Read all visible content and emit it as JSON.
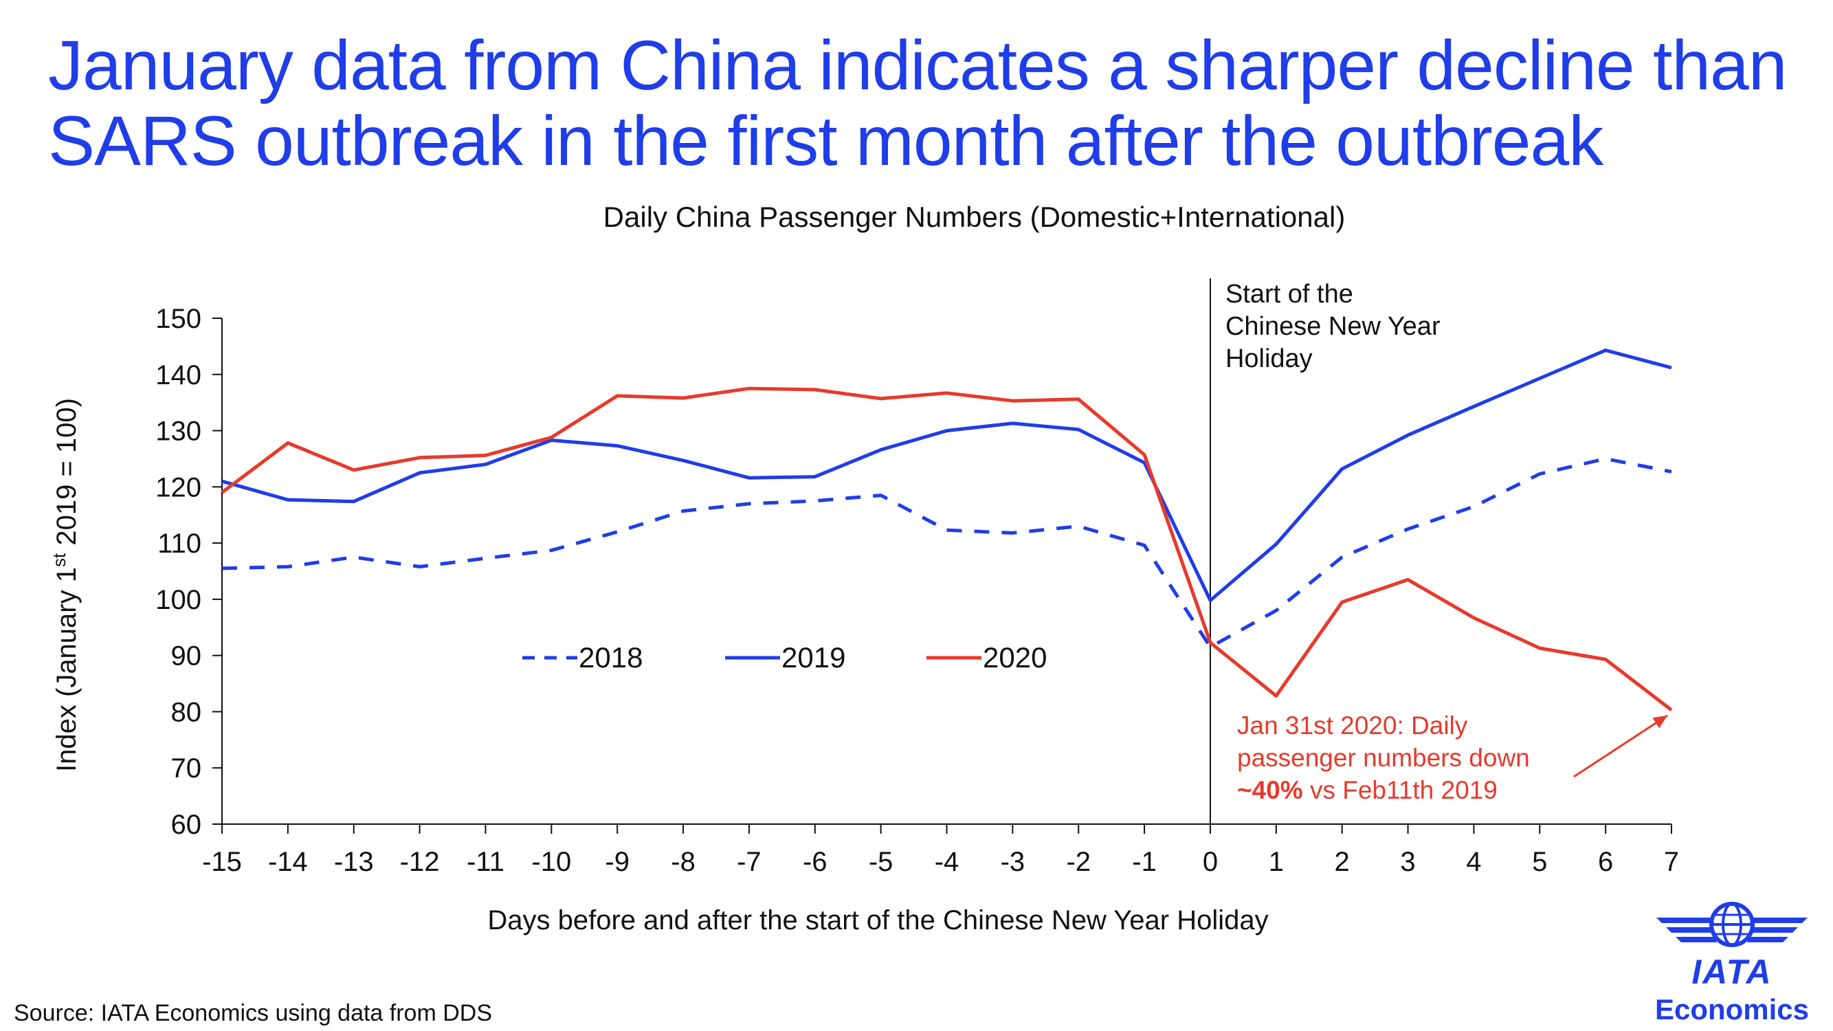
{
  "headline": {
    "line1": "January data from China indicates a sharper decline than",
    "line2": "SARS outbreak in the first month after the outbreak"
  },
  "chart_data": {
    "type": "line",
    "title": "Daily China Passenger Numbers (Domestic+International)",
    "xlabel": "Days before and after the start of the Chinese New Year Holiday",
    "ylabel": "Index (January 1st 2019 = 100)",
    "ylabel_parts": {
      "before": "Index (January 1",
      "sup": "st",
      "after": " 2019 = 100)"
    },
    "ylim": [
      60,
      150
    ],
    "yticks": [
      60,
      70,
      80,
      90,
      100,
      110,
      120,
      130,
      140,
      150
    ],
    "x": [
      -15,
      -14,
      -13,
      -12,
      -11,
      -10,
      -9,
      -8,
      -7,
      -6,
      -5,
      -4,
      -3,
      -2,
      -1,
      0,
      1,
      2,
      3,
      4,
      5,
      6,
      7
    ],
    "grid": false,
    "legend_position": "middle",
    "series": [
      {
        "name": "2018",
        "color": "#1f3de8",
        "dashed": true,
        "values": [
          105.5,
          105.8,
          107.5,
          105.8,
          107.3,
          108.7,
          112.0,
          115.7,
          117.0,
          117.5,
          118.5,
          112.3,
          111.8,
          113.0,
          109.6,
          91.5,
          98.0,
          107.5,
          112.5,
          116.5,
          122.3,
          125.0,
          122.7
        ]
      },
      {
        "name": "2019",
        "color": "#1f3de8",
        "dashed": false,
        "values": [
          121.0,
          117.7,
          117.4,
          122.5,
          124.0,
          128.3,
          127.3,
          124.7,
          121.6,
          121.8,
          126.6,
          130.0,
          131.3,
          130.2,
          124.3,
          99.8,
          109.8,
          123.2,
          129.2,
          134.3,
          139.3,
          144.3,
          141.2
        ]
      },
      {
        "name": "2020",
        "color": "#e8392c",
        "dashed": false,
        "values": [
          119.0,
          127.8,
          123.0,
          125.2,
          125.6,
          128.8,
          136.2,
          135.8,
          137.5,
          137.3,
          135.7,
          136.7,
          135.3,
          135.6,
          125.7,
          92.3,
          82.8,
          99.5,
          103.5,
          96.7,
          91.3,
          89.3,
          80.3
        ]
      }
    ],
    "annotations": {
      "holiday_line_x": 0,
      "holiday_label": [
        "Start of the",
        "Chinese New Year",
        "Holiday"
      ],
      "decline_label": {
        "line1": "Jan 31st 2020: Daily",
        "line2": "passenger numbers down",
        "bold": "~40%",
        "rest": " vs Feb11th 2019",
        "color": "#e8392c",
        "arrow_target_x": 7,
        "arrow_target_y": 80.3
      }
    }
  },
  "source": "Source: IATA Economics using data from DDS",
  "logo": {
    "name": "IATA",
    "sub": "Economics",
    "color": "#1f3de8"
  }
}
